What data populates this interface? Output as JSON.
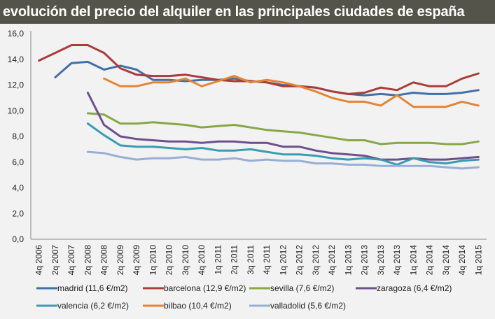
{
  "chart_data": {
    "type": "line",
    "title": "evolución del precio del alquiler en las principales ciudades de españa",
    "xlabel": "",
    "ylabel": "",
    "ylim": [
      0,
      16
    ],
    "yticks": [
      "0,0",
      "2,0",
      "4,0",
      "6,0",
      "8,0",
      "10,0",
      "12,0",
      "14,0",
      "16,0"
    ],
    "grid": false,
    "legend_position": "bottom",
    "categories": [
      "4q 2006",
      "2q 2007",
      "4q 2007",
      "2q 2008",
      "4q 2008",
      "2q 2009",
      "4q 2009",
      "1q 2010",
      "2q 2010",
      "3q 2010",
      "4q 2010",
      "1q 2011",
      "2q 2011",
      "3q 2011",
      "4q 2011",
      "1q 2012",
      "2q 2012",
      "3q 2012",
      "4q 2012",
      "1q 2013",
      "2q 2013",
      "3q 2013",
      "4q 2013",
      "1q 2014",
      "2q 2014",
      "3q 2014",
      "4q 2014",
      "1q 2015"
    ],
    "series": [
      {
        "name": "madrid (11,6 €/m2)",
        "color": "#4170a8",
        "values": [
          null,
          12.6,
          13.7,
          13.8,
          13.2,
          13.5,
          13.2,
          12.4,
          12.4,
          12.3,
          12.4,
          12.4,
          12.5,
          12.3,
          12.2,
          12.0,
          11.9,
          11.8,
          11.5,
          11.3,
          11.2,
          11.3,
          11.2,
          11.4,
          11.3,
          11.3,
          11.4,
          11.6
        ]
      },
      {
        "name": "barcelona (12,9 €/m2)",
        "color": "#aa3c3a",
        "values": [
          13.9,
          14.5,
          15.1,
          15.1,
          14.5,
          13.3,
          12.8,
          12.7,
          12.7,
          12.8,
          12.6,
          12.4,
          12.3,
          12.3,
          12.2,
          11.9,
          11.9,
          11.8,
          11.5,
          11.3,
          11.4,
          11.8,
          11.6,
          12.2,
          11.9,
          11.9,
          12.5,
          12.9
        ]
      },
      {
        "name": "sevilla (7,6 €/m2)",
        "color": "#87a845",
        "values": [
          null,
          null,
          null,
          9.8,
          9.7,
          9.0,
          9.0,
          9.1,
          9.0,
          8.9,
          8.7,
          8.8,
          8.9,
          8.7,
          8.5,
          8.4,
          8.3,
          8.1,
          7.9,
          7.7,
          7.7,
          7.4,
          7.5,
          7.5,
          7.5,
          7.4,
          7.4,
          7.6
        ]
      },
      {
        "name": "zaragoza (6,4 €/m2)",
        "color": "#6d4f8e",
        "values": [
          null,
          null,
          null,
          11.4,
          8.9,
          8.0,
          7.8,
          7.7,
          7.6,
          7.6,
          7.5,
          7.6,
          7.6,
          7.5,
          7.5,
          7.2,
          7.2,
          6.9,
          6.7,
          6.6,
          6.5,
          6.2,
          6.2,
          6.3,
          6.2,
          6.2,
          6.3,
          6.4
        ]
      },
      {
        "name": "valencia (6,2 €/m2)",
        "color": "#3a9bb2",
        "values": [
          null,
          null,
          null,
          9.0,
          8.1,
          7.3,
          7.2,
          7.2,
          7.1,
          7.0,
          7.1,
          6.9,
          6.9,
          7.0,
          6.8,
          6.6,
          6.6,
          6.5,
          6.3,
          6.2,
          6.3,
          6.2,
          5.8,
          6.3,
          6.0,
          5.9,
          6.1,
          6.2
        ]
      },
      {
        "name": "bilbao (10,4 €/m2)",
        "color": "#e48435",
        "values": [
          null,
          null,
          null,
          null,
          12.5,
          11.9,
          11.9,
          12.2,
          12.2,
          12.5,
          11.9,
          12.3,
          12.7,
          12.2,
          12.4,
          12.2,
          11.9,
          11.5,
          11.0,
          10.7,
          10.7,
          10.4,
          11.2,
          10.3,
          10.3,
          10.3,
          10.7,
          10.4
        ]
      },
      {
        "name": "valladolid (5,6 €/m2)",
        "color": "#97aed6",
        "values": [
          null,
          null,
          null,
          6.8,
          6.7,
          6.4,
          6.2,
          6.3,
          6.3,
          6.4,
          6.2,
          6.2,
          6.3,
          6.1,
          6.2,
          6.1,
          6.1,
          5.9,
          5.9,
          5.8,
          5.8,
          5.7,
          5.7,
          5.7,
          5.7,
          5.6,
          5.5,
          5.6
        ]
      }
    ]
  }
}
